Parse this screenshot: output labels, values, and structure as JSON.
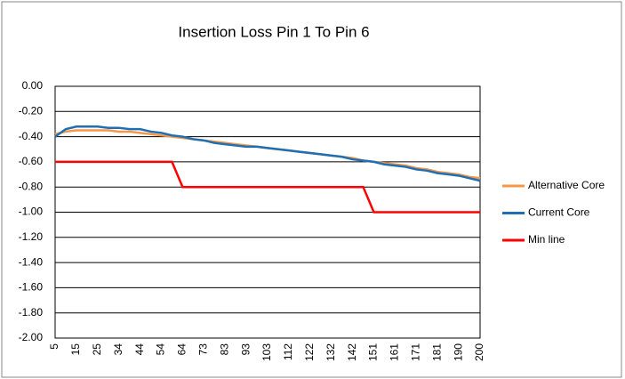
{
  "chart_data": {
    "type": "line",
    "title": "Insertion Loss  Pin 1 To Pin 6",
    "categories": [
      "5",
      null,
      "15",
      null,
      "25",
      null,
      "34",
      null,
      "44",
      null,
      "54",
      null,
      "64",
      null,
      "73",
      null,
      "83",
      null,
      "93",
      null,
      "103",
      null,
      "112",
      null,
      "122",
      null,
      "132",
      null,
      "142",
      null,
      "151",
      null,
      "161",
      null,
      "171",
      null,
      "181",
      null,
      "190",
      null,
      "200"
    ],
    "series": [
      {
        "name": "Alternative Core",
        "color": "#f79646",
        "values": [
          -0.38,
          -0.36,
          -0.35,
          -0.35,
          -0.35,
          -0.35,
          -0.36,
          -0.36,
          -0.37,
          -0.38,
          -0.39,
          -0.4,
          -0.41,
          -0.42,
          -0.43,
          -0.44,
          -0.45,
          -0.46,
          -0.47,
          -0.48,
          -0.49,
          -0.5,
          -0.51,
          -0.52,
          -0.53,
          -0.54,
          -0.55,
          -0.56,
          -0.57,
          -0.59,
          -0.6,
          -0.61,
          -0.62,
          -0.63,
          -0.65,
          -0.66,
          -0.68,
          -0.69,
          -0.7,
          -0.72,
          -0.73
        ]
      },
      {
        "name": "Current Core",
        "color": "#1f6fb5",
        "values": [
          -0.4,
          -0.34,
          -0.32,
          -0.32,
          -0.32,
          -0.33,
          -0.33,
          -0.34,
          -0.34,
          -0.36,
          -0.37,
          -0.39,
          -0.4,
          -0.42,
          -0.43,
          -0.45,
          -0.46,
          -0.47,
          -0.48,
          -0.48,
          -0.49,
          -0.5,
          -0.51,
          -0.52,
          -0.53,
          -0.54,
          -0.55,
          -0.56,
          -0.58,
          -0.59,
          -0.6,
          -0.62,
          -0.63,
          -0.64,
          -0.66,
          -0.67,
          -0.69,
          -0.7,
          -0.71,
          -0.73,
          -0.75
        ]
      },
      {
        "name": "Min line",
        "color": "#ff0000",
        "values": [
          -0.6,
          -0.6,
          -0.6,
          -0.6,
          -0.6,
          -0.6,
          -0.6,
          -0.6,
          -0.6,
          -0.6,
          -0.6,
          -0.6,
          -0.8,
          -0.8,
          -0.8,
          -0.8,
          -0.8,
          -0.8,
          -0.8,
          -0.8,
          -0.8,
          -0.8,
          -0.8,
          -0.8,
          -0.8,
          -0.8,
          -0.8,
          -0.8,
          -0.8,
          -0.8,
          -1.0,
          -1.0,
          -1.0,
          -1.0,
          -1.0,
          -1.0,
          -1.0,
          -1.0,
          -1.0,
          -1.0,
          -1.0
        ]
      }
    ],
    "ylim": [
      -2.0,
      0.0
    ],
    "yticks": [
      {
        "value": 0.0,
        "label": "0.00"
      },
      {
        "value": -0.2,
        "label": "-0.20"
      },
      {
        "value": -0.4,
        "label": "-0.40"
      },
      {
        "value": -0.6,
        "label": "-0.60"
      },
      {
        "value": -0.8,
        "label": "-0.80"
      },
      {
        "value": -1.0,
        "label": "-1.00"
      },
      {
        "value": -1.2,
        "label": "-1.20"
      },
      {
        "value": -1.4,
        "label": "-1.40"
      },
      {
        "value": -1.6,
        "label": "-1.60"
      },
      {
        "value": -1.8,
        "label": "-1.80"
      },
      {
        "value": -2.0,
        "label": "-2.00"
      }
    ],
    "grid": true,
    "legend": "right"
  }
}
